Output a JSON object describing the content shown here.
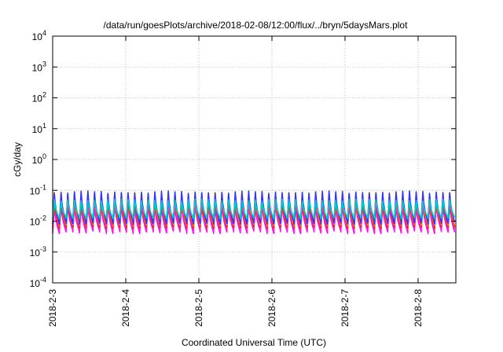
{
  "chart_data": {
    "type": "line",
    "title": "/data/run/goesPlots/archive/2018-02-08/12:00/flux/../bryn/5daysMars.plot",
    "xlabel": "Coordinated Universal Time (UTC)",
    "ylabel": "cGy/day",
    "y_scale": "log",
    "ylim": [
      0.0001,
      10000
    ],
    "y_ticks": [
      {
        "value": 0.0001,
        "base": "10",
        "exp": "-4"
      },
      {
        "value": 0.001,
        "base": "10",
        "exp": "-3"
      },
      {
        "value": 0.01,
        "base": "10",
        "exp": "-2"
      },
      {
        "value": 0.1,
        "base": "10",
        "exp": "-1"
      },
      {
        "value": 1,
        "base": "10",
        "exp": "0"
      },
      {
        "value": 10,
        "base": "10",
        "exp": "1"
      },
      {
        "value": 100,
        "base": "10",
        "exp": "2"
      },
      {
        "value": 1000,
        "base": "10",
        "exp": "3"
      },
      {
        "value": 10000,
        "base": "10",
        "exp": "4"
      }
    ],
    "x_ticks": [
      "2018-2-3",
      "2018-2-4",
      "2018-2-5",
      "2018-2-6",
      "2018-2-7",
      "2018-2-8"
    ],
    "xlim_days": [
      0,
      5.5
    ],
    "grid": true,
    "legend": "none",
    "series": [
      {
        "color": "#ff00ff",
        "start_values": [
          0.004,
          0.0045,
          0.005,
          0.0045,
          0.0042,
          0.005,
          0.0048,
          0.0045,
          0.004,
          0.005,
          0.0046,
          0.0044
        ],
        "peak_values": [
          0.03,
          0.035,
          0.033,
          0.038,
          0.032,
          0.036,
          0.03,
          0.034,
          0.037,
          0.031,
          0.035,
          0.033
        ]
      },
      {
        "color": "#ff3399",
        "start_values": [
          0.005,
          0.0055,
          0.006,
          0.0055,
          0.0052,
          0.006,
          0.0058,
          0.0055,
          0.005,
          0.006,
          0.0056,
          0.0054
        ],
        "peak_values": [
          0.04,
          0.045,
          0.043,
          0.048,
          0.042,
          0.046,
          0.04,
          0.044,
          0.047,
          0.041,
          0.045,
          0.043
        ]
      },
      {
        "color": "#cc2222",
        "start_values": [
          0.006,
          0.0065,
          0.007,
          0.0066,
          0.0062,
          0.007,
          0.0068,
          0.0065,
          0.006,
          0.007,
          0.0066,
          0.0064
        ],
        "peak_values": [
          0.06,
          0.07,
          0.065,
          0.075,
          0.062,
          0.072,
          0.06,
          0.068,
          0.074,
          0.063,
          0.07,
          0.066
        ]
      },
      {
        "color": "#ff8800",
        "start_values": [
          0.007,
          0.0075,
          0.008,
          0.0076,
          0.0072,
          0.008,
          0.0078,
          0.0075,
          0.007,
          0.008,
          0.0076,
          0.0074
        ],
        "peak_values": [
          0.07,
          0.08,
          0.075,
          0.085,
          0.072,
          0.082,
          0.07,
          0.078,
          0.084,
          0.073,
          0.08,
          0.076
        ]
      },
      {
        "color": "#3333ff",
        "start_values": [
          0.008,
          0.009,
          0.0085,
          0.0095,
          0.008,
          0.009,
          0.0088,
          0.0092,
          0.0082,
          0.009,
          0.0086,
          0.0094
        ],
        "peak_values": [
          0.08,
          0.09,
          0.085,
          0.095,
          0.082,
          0.092,
          0.08,
          0.088,
          0.094,
          0.083,
          0.09,
          0.086
        ]
      },
      {
        "color": "#00cccc",
        "start_values": [
          0.012,
          0.013,
          0.0125,
          0.0135,
          0.012,
          0.013,
          0.0128,
          0.0132,
          0.0122,
          0.013,
          0.0126,
          0.0134
        ],
        "peak_values": [
          0.045,
          0.05,
          0.047,
          0.052,
          0.046,
          0.05,
          0.045,
          0.049,
          0.051,
          0.046,
          0.05,
          0.048
        ]
      }
    ]
  }
}
